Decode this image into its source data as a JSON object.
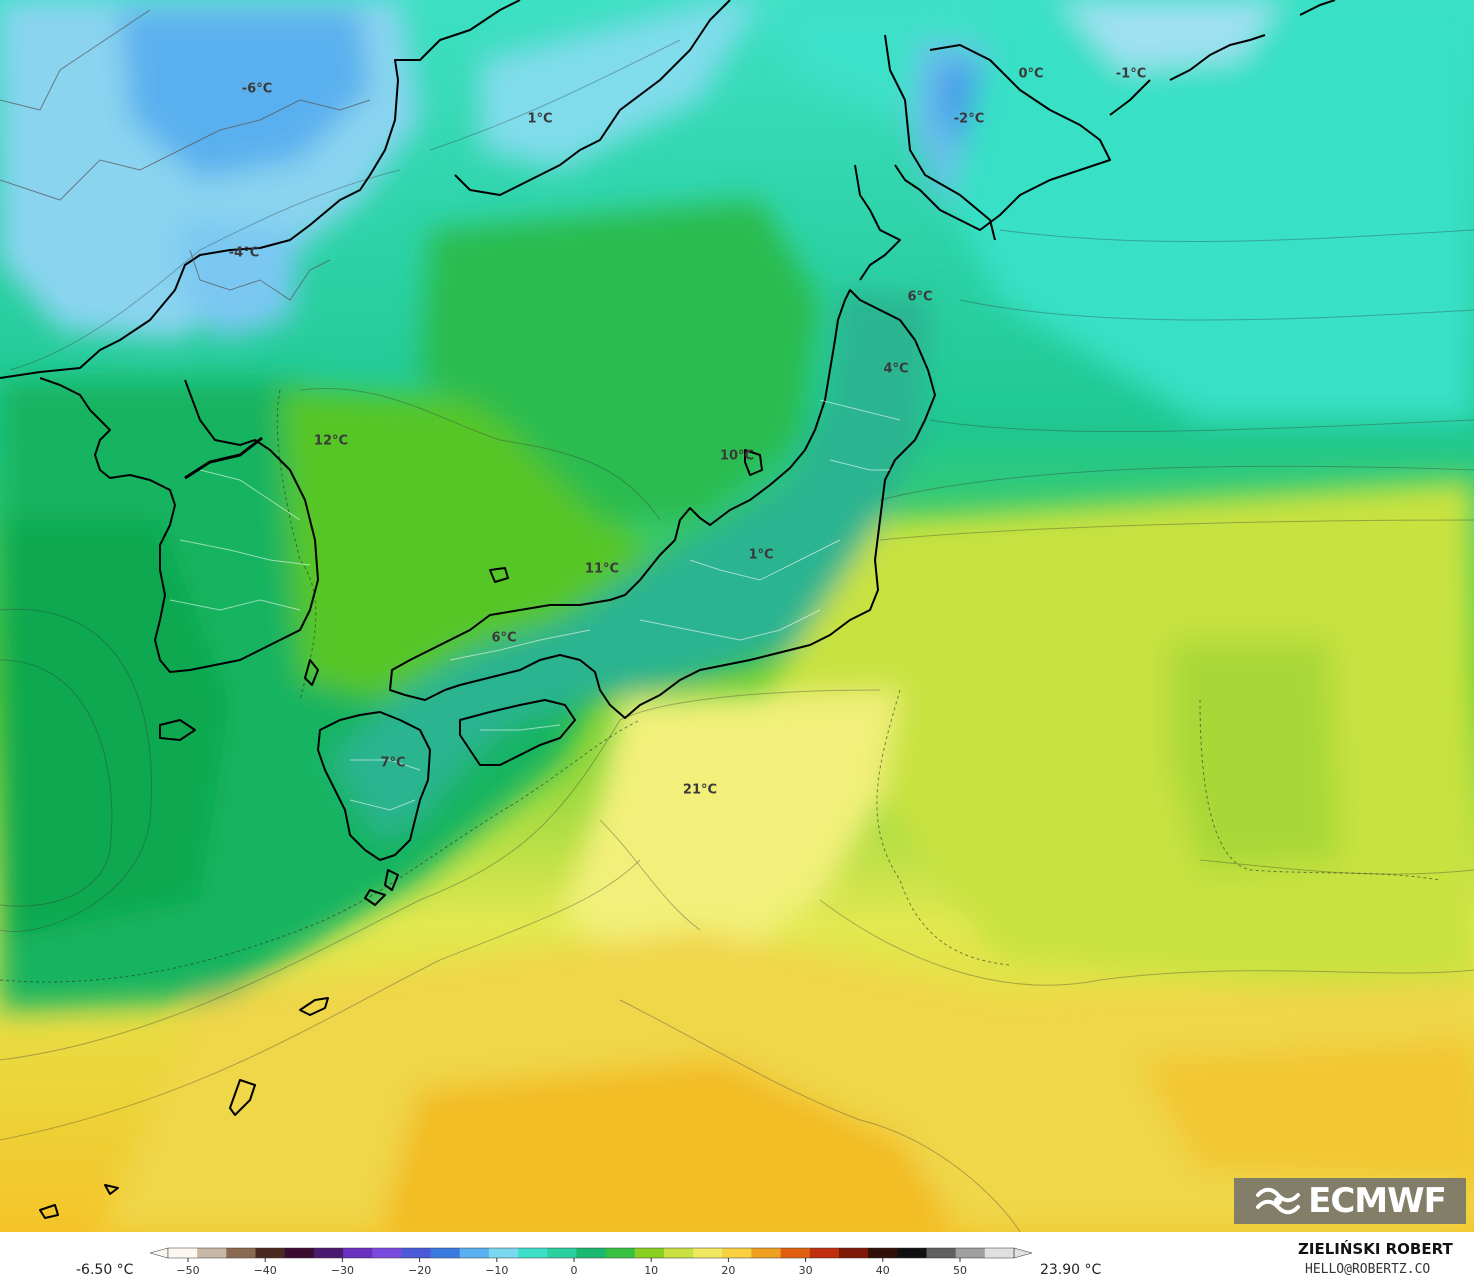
{
  "map": {
    "labels": [
      {
        "text": "-6°C"
      },
      {
        "text": "1°C"
      },
      {
        "text": "0°C"
      },
      {
        "text": "-1°C"
      },
      {
        "text": "-2°C"
      },
      {
        "text": "-4°C"
      },
      {
        "text": "6°C"
      },
      {
        "text": "4°C"
      },
      {
        "text": "12°C"
      },
      {
        "text": "10°C"
      },
      {
        "text": "11°C"
      },
      {
        "text": "1°C"
      },
      {
        "text": "6°C"
      },
      {
        "text": "7°C"
      },
      {
        "text": "21°C"
      }
    ]
  },
  "logo": {
    "text": "ECMWF",
    "icon": "ecmwf-logo-icon"
  },
  "legend": {
    "min": "-6.50 °C",
    "max": "23.90 °C",
    "ticks": [
      "−50",
      "−40",
      "−30",
      "−20",
      "−10",
      "0",
      "10",
      "20",
      "30",
      "40",
      "50"
    ],
    "colors": [
      "#fbf6ef",
      "#c9b8a6",
      "#8a6a50",
      "#4a2a20",
      "#3a0a30",
      "#4b1a6e",
      "#6a30c0",
      "#7a4adf",
      "#4a5ad8",
      "#3a7ae0",
      "#5ab0f0",
      "#7ad8f0",
      "#3ce0c8",
      "#2ad0a0",
      "#1ab870",
      "#38c040",
      "#8ad020",
      "#c8e040",
      "#f0e860",
      "#f8d040",
      "#f0a020",
      "#e06010",
      "#c03010",
      "#801808",
      "#301008",
      "#101010",
      "#606060",
      "#a0a0a0",
      "#e0e0e0"
    ]
  },
  "credit": {
    "name": "ZIELIŃSKI ROBERT",
    "email": "HELLO@ROBERTZ.CO"
  }
}
